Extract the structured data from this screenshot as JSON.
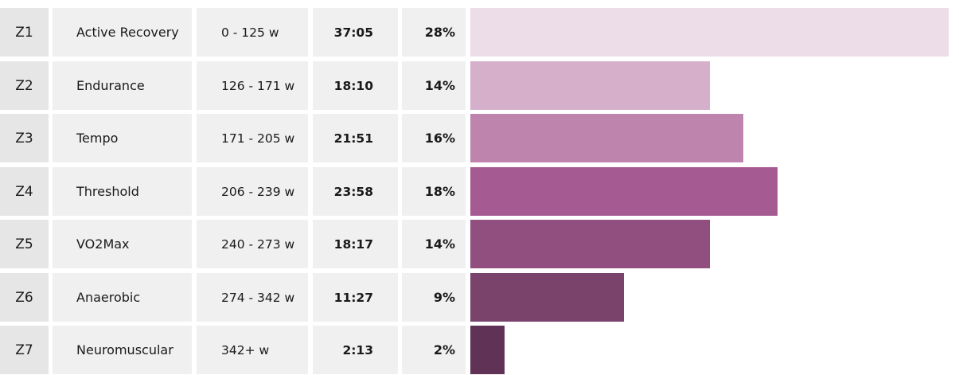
{
  "chart_data": {
    "type": "bar",
    "orientation": "horizontal",
    "title": "",
    "xlabel": "",
    "ylabel": "",
    "columns": [
      "zone",
      "name",
      "power_range",
      "time",
      "percent"
    ],
    "rows": [
      {
        "zone": "Z1",
        "name": "Active Recovery",
        "power_range": "0 - 125 w",
        "time": "37:05",
        "percent": "28%",
        "value": 28,
        "color": "#eddde8"
      },
      {
        "zone": "Z2",
        "name": "Endurance",
        "power_range": "126 - 171 w",
        "time": "18:10",
        "percent": "14%",
        "value": 14,
        "color": "#d6b0cb"
      },
      {
        "zone": "Z3",
        "name": "Tempo",
        "power_range": "171 - 205 w",
        "time": "21:51",
        "percent": "16%",
        "value": 16,
        "color": "#bf84ae"
      },
      {
        "zone": "Z4",
        "name": "Threshold",
        "power_range": "206 - 239 w",
        "time": "23:58",
        "percent": "18%",
        "value": 18,
        "color": "#a65a92"
      },
      {
        "zone": "Z5",
        "name": "VO2Max",
        "power_range": "240 - 273 w",
        "time": "18:17",
        "percent": "14%",
        "value": 14,
        "color": "#914f80"
      },
      {
        "zone": "Z6",
        "name": "Anaerobic",
        "power_range": "274 - 342 w",
        "time": "11:27",
        "percent": "9%",
        "value": 9,
        "color": "#7a436b"
      },
      {
        "zone": "Z7",
        "name": "Neuromuscular",
        "power_range": "342+ w",
        "time": "2:13",
        "percent": "2%",
        "value": 2,
        "color": "#603356"
      }
    ],
    "xlim": [
      0,
      28
    ],
    "grid": false,
    "legend": "none"
  }
}
